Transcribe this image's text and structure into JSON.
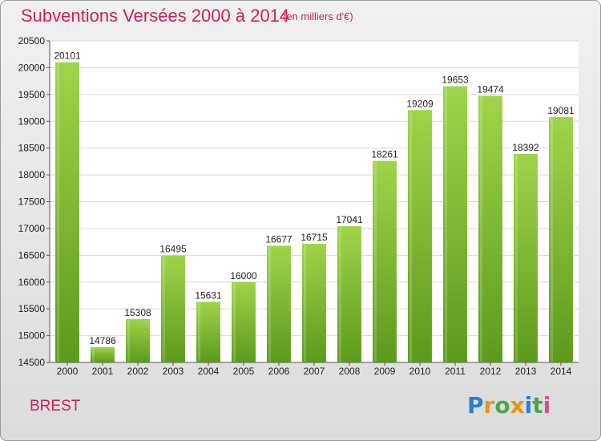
{
  "title": "Subventions Versées 2000 à 2014",
  "subtitle": "(en milliers d'€)",
  "city": "BREST",
  "logo": {
    "letters": [
      "P",
      "r",
      "o",
      "x",
      "i",
      "t",
      "i"
    ],
    "colors": [
      "#2a7fd4",
      "#e8941a",
      "#4aa844",
      "#e8941a",
      "#2a7fd4",
      "#4aa844",
      "#e04a9a"
    ]
  },
  "colors": {
    "accent": "#cc1f5a",
    "bar_top": "#9fd44a",
    "bar_bottom": "#5c9a1c",
    "grid": "#d8d8d8",
    "plot_bg": "#ffffff"
  },
  "chart_data": {
    "type": "bar",
    "categories": [
      "2000",
      "2001",
      "2002",
      "2003",
      "2004",
      "2005",
      "2006",
      "2007",
      "2008",
      "2009",
      "2010",
      "2011",
      "2012",
      "2013",
      "2014"
    ],
    "values": [
      20101,
      14786,
      15308,
      16495,
      15631,
      16000,
      16677,
      16715,
      17041,
      18261,
      19209,
      19653,
      19474,
      18392,
      19081
    ],
    "data_labels": [
      "20101",
      "14786",
      "15308",
      "16495",
      "15631",
      "16000",
      "16677",
      "16715",
      "17041",
      "18261",
      "19209",
      "19653",
      "19474",
      "18392",
      "19081"
    ],
    "y_ticks": [
      "14500",
      "15000",
      "15500",
      "16000",
      "16500",
      "17000",
      "17500",
      "18000",
      "18500",
      "19000",
      "19500",
      "20000",
      "20500"
    ],
    "ylim": [
      14500,
      20500
    ],
    "grid": true,
    "legend": false
  }
}
